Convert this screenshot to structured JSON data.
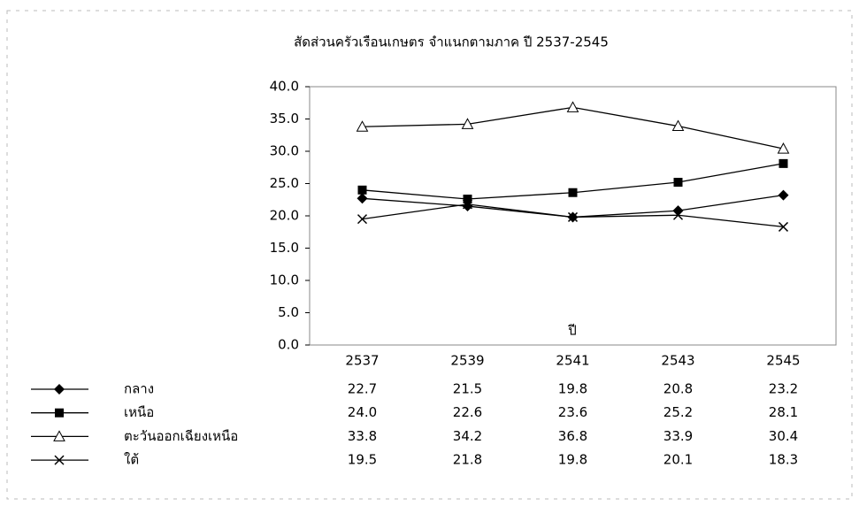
{
  "chart_data": {
    "type": "line",
    "title": "สัดส่วนครัวเรือนเกษตร จำแนกตามภาค ปี 2537-2545",
    "x_label": "ปี",
    "categories": [
      "2537",
      "2539",
      "2541",
      "2543",
      "2545"
    ],
    "series": [
      {
        "name": "กลาง",
        "color": "#000000",
        "marker": "diamond",
        "values": [
          22.7,
          21.5,
          19.8,
          20.8,
          23.2
        ],
        "value_labels": [
          "22.7",
          "21.5",
          "19.8",
          "20.8",
          "23.2"
        ]
      },
      {
        "name": "เหนือ",
        "color": "#000000",
        "marker": "square",
        "values": [
          24.0,
          22.6,
          23.6,
          25.2,
          28.1
        ],
        "value_labels": [
          "24.0",
          "22.6",
          "23.6",
          "25.2",
          "28.1"
        ]
      },
      {
        "name": "ตะวันออกเฉียงเหนือ",
        "color": "#000000",
        "marker": "triangle",
        "values": [
          33.8,
          34.2,
          36.8,
          33.9,
          30.4
        ],
        "value_labels": [
          "33.8",
          "34.2",
          "36.8",
          "33.9",
          "30.4"
        ]
      },
      {
        "name": "ใต้",
        "color": "#000000",
        "marker": "x",
        "values": [
          19.5,
          21.8,
          19.8,
          20.1,
          18.3
        ],
        "value_labels": [
          "19.5",
          "21.8",
          "19.8",
          "20.1",
          "18.3"
        ]
      }
    ],
    "ylim": [
      0,
      40
    ],
    "yticks": [
      {
        "value": 0,
        "label": "0.0"
      },
      {
        "value": 5,
        "label": "5.0"
      },
      {
        "value": 10,
        "label": "10.0"
      },
      {
        "value": 15,
        "label": "15.0"
      },
      {
        "value": 20,
        "label": "20.0"
      },
      {
        "value": 25,
        "label": "25.0"
      },
      {
        "value": 30,
        "label": "30.0"
      },
      {
        "value": 35,
        "label": "35.0"
      },
      {
        "value": 40,
        "label": "40.0"
      }
    ],
    "grid": false
  }
}
